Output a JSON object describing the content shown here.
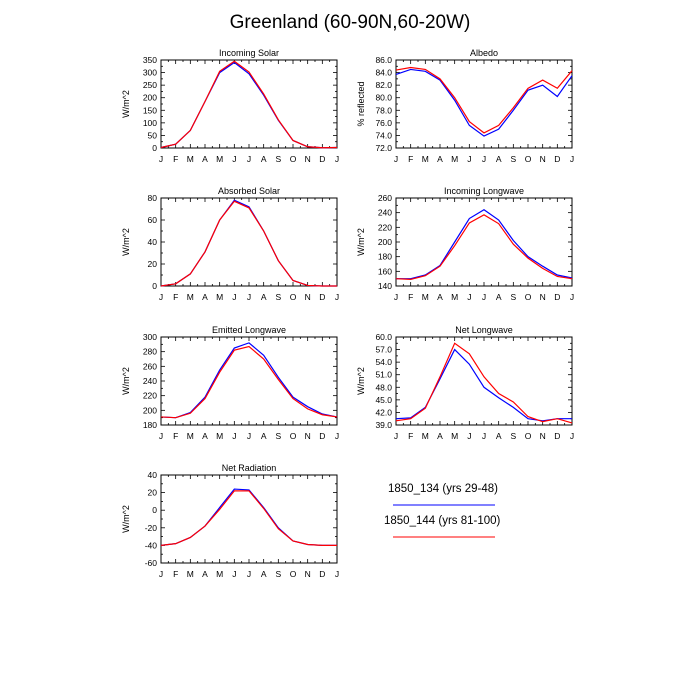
{
  "title": "Greenland (60-90N,60-20W)",
  "colors": {
    "case1": "#0000ff",
    "case2": "#ff0000",
    "axis": "#000000"
  },
  "legend": [
    {
      "label": "1850_134 (yrs 29-48)",
      "color": "#0000ff"
    },
    {
      "label": "1850_144 (yrs 81-100)",
      "color": "#ff0000"
    }
  ],
  "chart_data": [
    {
      "type": "line",
      "title": "Incoming Solar",
      "ylabel": "W/m^2",
      "categories": [
        "J",
        "F",
        "M",
        "A",
        "M",
        "J",
        "J",
        "A",
        "S",
        "O",
        "N",
        "D",
        "J"
      ],
      "ylim": [
        0,
        350
      ],
      "yticks": [
        "0",
        "50",
        "100",
        "150",
        "200",
        "250",
        "300",
        "350"
      ],
      "yticks_values": [
        0,
        50,
        100,
        150,
        200,
        250,
        300,
        350
      ],
      "series": [
        {
          "values": [
            2,
            15,
            70,
            185,
            300,
            340,
            295,
            210,
            110,
            30,
            5,
            1,
            2
          ]
        },
        {
          "values": [
            2,
            15,
            70,
            185,
            305,
            345,
            302,
            215,
            112,
            30,
            5,
            1,
            2
          ]
        }
      ]
    },
    {
      "type": "line",
      "title": "Albedo",
      "ylabel": "% reflected",
      "categories": [
        "J",
        "F",
        "M",
        "A",
        "M",
        "J",
        "J",
        "A",
        "S",
        "O",
        "N",
        "D",
        "J"
      ],
      "ylim": [
        72.0,
        86.0
      ],
      "yticks": [
        "72.0",
        "74.0",
        "76.0",
        "78.0",
        "80.0",
        "82.0",
        "84.0",
        "86.0"
      ],
      "yticks_values": [
        72,
        74,
        76,
        78,
        80,
        82,
        84,
        86
      ],
      "series": [
        {
          "values": [
            83.7,
            84.5,
            84.2,
            82.8,
            79.6,
            75.6,
            73.9,
            75.0,
            78.0,
            81.2,
            82.0,
            80.2,
            83.5
          ]
        },
        {
          "values": [
            84.4,
            84.8,
            84.5,
            83.0,
            80.0,
            76.2,
            74.4,
            75.6,
            78.4,
            81.5,
            82.8,
            81.5,
            84.3
          ]
        }
      ]
    },
    {
      "type": "line",
      "title": "Absorbed Solar",
      "ylabel": "W/m^2",
      "categories": [
        "J",
        "F",
        "M",
        "A",
        "M",
        "J",
        "J",
        "A",
        "S",
        "O",
        "N",
        "D",
        "J"
      ],
      "ylim": [
        0,
        80
      ],
      "yticks": [
        "0",
        "20",
        "40",
        "60",
        "80"
      ],
      "yticks_values": [
        0,
        20,
        40,
        60,
        80
      ],
      "series": [
        {
          "values": [
            0,
            2,
            11,
            31,
            60,
            78,
            72,
            50,
            23,
            5,
            0.5,
            0,
            0
          ]
        },
        {
          "values": [
            0,
            2,
            11,
            31,
            60,
            77,
            71,
            50,
            23,
            5,
            0.5,
            0,
            0
          ]
        }
      ]
    },
    {
      "type": "line",
      "title": "Incoming Longwave",
      "ylabel": "W/m^2",
      "categories": [
        "J",
        "F",
        "M",
        "A",
        "M",
        "J",
        "J",
        "A",
        "S",
        "O",
        "N",
        "D",
        "J"
      ],
      "ylim": [
        140,
        260
      ],
      "yticks": [
        "140",
        "160",
        "180",
        "200",
        "220",
        "240",
        "260"
      ],
      "yticks_values": [
        140,
        160,
        180,
        200,
        220,
        240,
        260
      ],
      "series": [
        {
          "values": [
            150,
            150,
            155,
            168,
            200,
            232,
            244,
            230,
            202,
            180,
            167,
            155,
            151
          ]
        },
        {
          "values": [
            150,
            149,
            154,
            167,
            195,
            226,
            237,
            225,
            197,
            178,
            164,
            153,
            150
          ]
        }
      ]
    },
    {
      "type": "line",
      "title": "Emitted Longwave",
      "ylabel": "W/m^2",
      "categories": [
        "J",
        "F",
        "M",
        "A",
        "M",
        "J",
        "J",
        "A",
        "S",
        "O",
        "N",
        "D",
        "J"
      ],
      "ylim": [
        180,
        300
      ],
      "yticks": [
        "180",
        "200",
        "220",
        "240",
        "260",
        "280",
        "300"
      ],
      "yticks_values": [
        180,
        200,
        220,
        240,
        260,
        280,
        300
      ],
      "series": [
        {
          "values": [
            191,
            190,
            197,
            218,
            255,
            285,
            292,
            275,
            245,
            218,
            205,
            195,
            191
          ]
        },
        {
          "values": [
            191,
            190,
            196,
            216,
            252,
            282,
            287,
            270,
            242,
            216,
            202,
            194,
            191
          ]
        }
      ]
    },
    {
      "type": "line",
      "title": "Net Longwave",
      "ylabel": "W/m^2",
      "categories": [
        "J",
        "F",
        "M",
        "A",
        "M",
        "J",
        "J",
        "A",
        "S",
        "O",
        "N",
        "D",
        "J"
      ],
      "ylim": [
        39.0,
        60.0
      ],
      "yticks": [
        "39.0",
        "42.0",
        "45.0",
        "48.0",
        "51.0",
        "54.0",
        "57.0",
        "60.0"
      ],
      "yticks_values": [
        39,
        42,
        45,
        48,
        51,
        54,
        57,
        60
      ],
      "series": [
        {
          "values": [
            40.5,
            40.7,
            43.2,
            50.0,
            57.0,
            53.5,
            48.0,
            45.5,
            43.2,
            40.5,
            40.0,
            40.5,
            40.5
          ]
        },
        {
          "values": [
            40.0,
            40.5,
            43.0,
            50.5,
            58.5,
            56.0,
            50.5,
            46.5,
            44.5,
            41.0,
            39.8,
            40.5,
            39.5
          ]
        }
      ]
    },
    {
      "type": "line",
      "title": "Net Radiation",
      "ylabel": "W/m^2",
      "categories": [
        "J",
        "F",
        "M",
        "A",
        "M",
        "J",
        "J",
        "A",
        "S",
        "O",
        "N",
        "D",
        "J"
      ],
      "ylim": [
        -60,
        40
      ],
      "yticks": [
        "-60",
        "-40",
        "-20",
        "0",
        "20",
        "40"
      ],
      "yticks_values": [
        -60,
        -40,
        -20,
        0,
        20,
        40
      ],
      "series": [
        {
          "values": [
            -40,
            -38,
            -31,
            -18,
            3,
            24,
            23,
            3,
            -20,
            -35,
            -39,
            -40,
            -40
          ]
        },
        {
          "values": [
            -40,
            -38,
            -31,
            -18,
            1,
            22,
            22,
            2,
            -21,
            -35,
            -39,
            -40,
            -40
          ]
        }
      ]
    }
  ]
}
